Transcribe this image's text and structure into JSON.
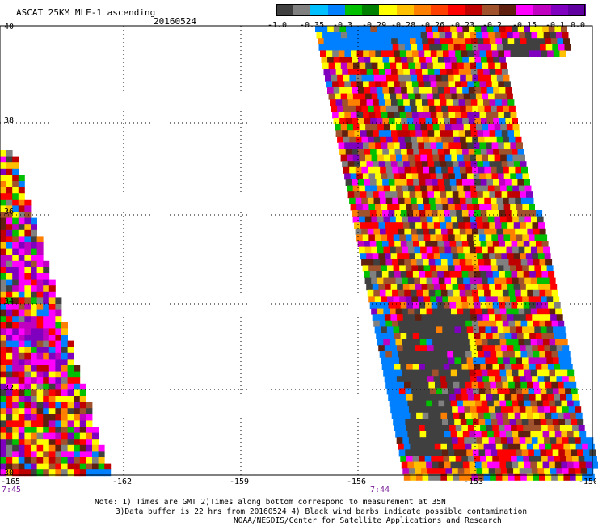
{
  "header": {
    "product": "ASCAT 25KM MLE-1 ascending",
    "date": "20160524"
  },
  "legend": {
    "labels": [
      "-1.0",
      "-0.35",
      "-0.3",
      "-0.29",
      "-0.28",
      "-0.26",
      "-0.23",
      "-0.2",
      "-0.15",
      "-0.1",
      "0.0"
    ],
    "colors": [
      "#404040",
      "#808080",
      "#00bfff",
      "#0080ff",
      "#00c000",
      "#008000",
      "#ffff00",
      "#ffc000",
      "#ff8000",
      "#ff4000",
      "#ff0000",
      "#c00000",
      "#a0522d",
      "#602010",
      "#ff00ff",
      "#c000c0",
      "#8000c0",
      "#6000a0"
    ]
  },
  "axes": {
    "lat_labels": [
      "40",
      "38",
      "36",
      "34",
      "32",
      "30"
    ],
    "lon_labels": [
      "-165",
      "-162",
      "-159",
      "-156",
      "-153",
      "-150"
    ]
  },
  "times": {
    "left_swath": "7:45",
    "right_swath": "7:44"
  },
  "notes": {
    "line1": "Note: 1) Times are GMT 2)Times along bottom correspond to measurement at 35N",
    "line2": "3)Data buffer is 22 hrs from 20160524 4) Black wind barbs indicate possible contamination",
    "line3": "NOAA/NESDIS/Center for Satellite Applications and Research"
  }
}
